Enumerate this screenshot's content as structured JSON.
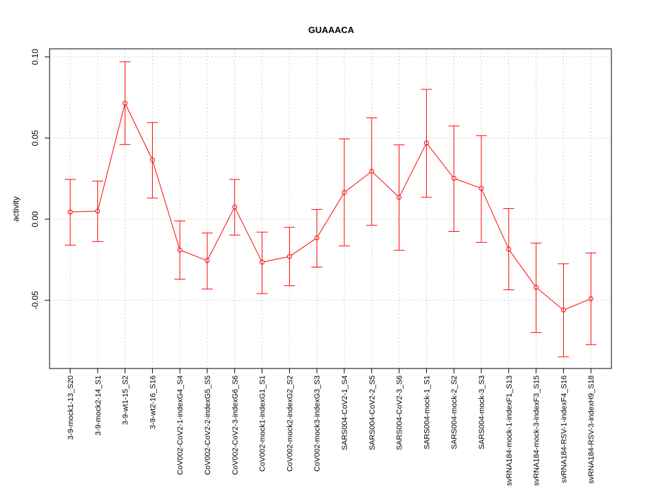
{
  "chart_data": {
    "type": "line",
    "title": "GUAAACA",
    "xlabel": "",
    "ylabel": "activity",
    "ylim": [
      -0.092,
      0.105
    ],
    "y_ticks": [
      {
        "value": -0.05,
        "label": "-0.05"
      },
      {
        "value": 0.0,
        "label": "0.00"
      },
      {
        "value": 0.05,
        "label": "0.05"
      },
      {
        "value": 0.1,
        "label": "0.10"
      }
    ],
    "grid": true,
    "series": [
      {
        "name": "activity",
        "color": "#ff0000",
        "categories": [
          "3-9-mock1-13_S20",
          "3-9-mock2-14_S1",
          "3-9-wt1-15_S2",
          "3-9-wt2-16_S16",
          "CoV002-CoV2-1-indexG4_S4",
          "CoV002-CoV2-2-indexG5_S5",
          "CoV002-CoV2-3-indexG6_S6",
          "CoV002-mock1-indexG1_S1",
          "CoV002-mock2-indexG2_S2",
          "CoV002-mock3-indexG3_S3",
          "SARS004-CoV2-1_S4",
          "SARS004-CoV2-2_S5",
          "SARS004-CoV2-3_S6",
          "SARS004-mock-1_S1",
          "SARS004-mock-2_S2",
          "SARS004-mock-3_S3",
          "svRNA184-mock-1-indexF1_S13",
          "svRNA184-mock-3-indexF3_S15",
          "svRNA184-RSV-1-indexF4_S16",
          "svRNA184-RSV-3-indexH9_S18"
        ],
        "values": [
          0.0045,
          0.005,
          0.0715,
          0.0365,
          -0.019,
          -0.0255,
          0.0075,
          -0.0265,
          -0.023,
          -0.0115,
          0.0165,
          0.0295,
          0.0135,
          0.047,
          0.0252,
          0.019,
          -0.0185,
          -0.042,
          -0.056,
          -0.049
        ],
        "upper": [
          0.0245,
          0.0235,
          0.097,
          0.0595,
          -0.001,
          -0.0085,
          0.0245,
          -0.008,
          -0.005,
          0.006,
          0.0495,
          0.0625,
          0.0458,
          0.08,
          0.0575,
          0.0515,
          0.0065,
          -0.0148,
          -0.0275,
          -0.0208
        ],
        "lower": [
          -0.016,
          -0.0138,
          0.046,
          0.013,
          -0.037,
          -0.043,
          -0.0098,
          -0.0458,
          -0.041,
          -0.0295,
          -0.0165,
          -0.0038,
          -0.0192,
          0.0135,
          -0.0075,
          -0.0143,
          -0.0435,
          -0.0698,
          -0.0848,
          -0.0773
        ]
      }
    ]
  }
}
